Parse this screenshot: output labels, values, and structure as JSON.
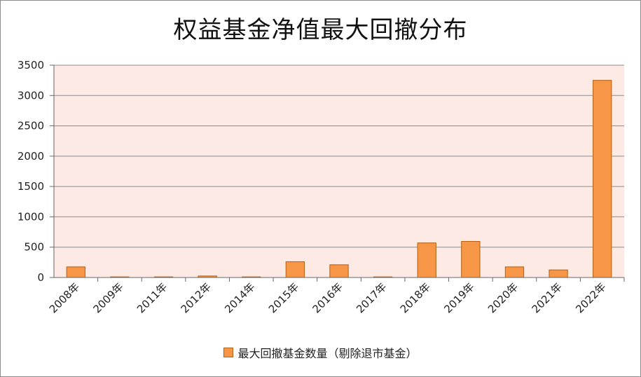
{
  "chart_data": {
    "type": "bar",
    "title": "权益基金净值最大回撤分布",
    "categories": [
      "2008年",
      "2009年",
      "2011年",
      "2012年",
      "2014年",
      "2015年",
      "2016年",
      "2017年",
      "2018年",
      "2019年",
      "2020年",
      "2021年",
      "2022年"
    ],
    "series": [
      {
        "name": "最大回撤基金数量（剔除退市基金）",
        "values": [
          175,
          10,
          10,
          25,
          10,
          260,
          210,
          10,
          570,
          595,
          175,
          125,
          3250
        ]
      }
    ],
    "ylim": [
      0,
      3500
    ],
    "yticks": [
      0,
      500,
      1000,
      1500,
      2000,
      2500,
      3000,
      3500
    ],
    "xlabel": "",
    "ylabel": "",
    "grid": true,
    "legend_position": "bottom",
    "colors": {
      "bar": "#f79646",
      "bar_border": "#b35f14",
      "plot_background": "#fdeae4",
      "gridline": "#8c8c8c"
    }
  }
}
